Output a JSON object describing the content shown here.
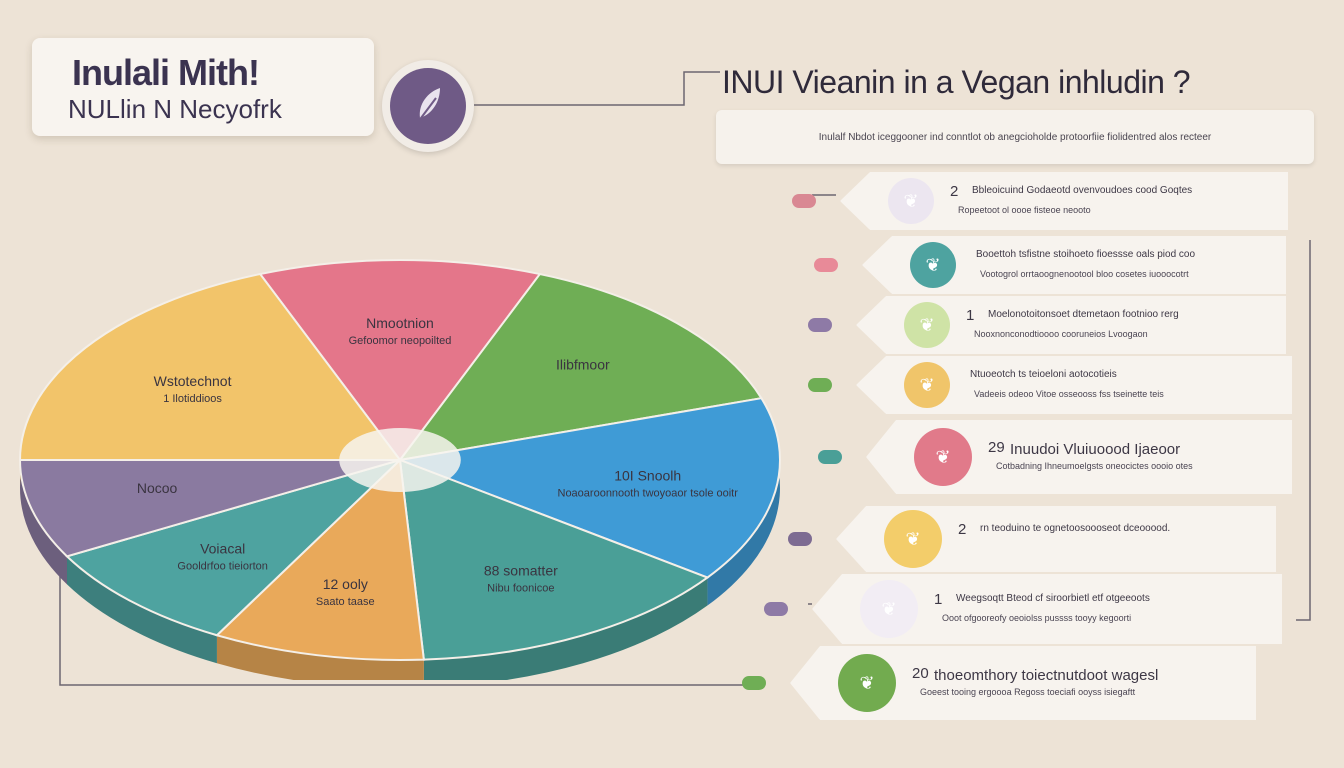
{
  "header": {
    "title": "Inulali Mith!",
    "subtitle": "NULlin N Necyofrk",
    "headline": "INUI Vieanin in a Vegan inhludin ?",
    "intro": "Inulalf Nbdot iceggooner ind conntlot ob anegcioholde protoorfiie fiolidentred alos recteer"
  },
  "colors": {
    "background": "#ede3d6",
    "pink": "#e88a98",
    "yellow": "#f0c56a",
    "purple": "#7d6b92",
    "green": "#6fae55",
    "teal": "#4a9f97",
    "blue": "#4fa8d8",
    "orange": "#e9a95a"
  },
  "chart_data": {
    "type": "pie",
    "slices": [
      {
        "label": "Nmootnion",
        "value": 12,
        "color": "#e4768a",
        "detail": "Gefoomor neopoilted"
      },
      {
        "label": "Ilibfmoor",
        "value": 14,
        "color": "#6fae55",
        "detail": ""
      },
      {
        "label": "10I Snoolh",
        "value": 15,
        "color": "#3f9bd6",
        "detail": "Noaoaroonnooth twoyoaor tsole ooitr"
      },
      {
        "label": "88 somatter",
        "value": 14,
        "color": "#4a9f97",
        "detail": "Nibu foonicoe"
      },
      {
        "label": "12 ooly",
        "value": 9,
        "color": "#e9a95a",
        "detail": "Saato taase"
      },
      {
        "label": "Voiacal",
        "value": 9,
        "color": "#4ea3a0",
        "detail": "Gooldrfoo tieiorton"
      },
      {
        "label": "Nocoo",
        "value": 8,
        "color": "#8a7aa0",
        "detail": ""
      },
      {
        "label": "Wstotechnot",
        "value": 19,
        "color": "#f2c46a",
        "detail": "1 Ilotiddioos"
      }
    ],
    "legend_items": [
      {
        "number": "2",
        "line1": "Bbleoicuind Godaeotd ovenvoudoes cood Goqtes",
        "line2": "Ropeetoot ol oooe fisteoe neooto"
      },
      {
        "number": "",
        "line1": "Booettoh tsfistne stoihoeto fioessse oals piod coo",
        "line2": "Vootogrol orrtaoognenootool bloo cosetes iuooocotrt"
      },
      {
        "number": "1",
        "line1": "Moelonotoitonsoet dtemetaon footnioo rerg",
        "line2": "Nooxnonconodtioooo cooruneios Lvoogaon"
      },
      {
        "number": "",
        "line1": "Ntuoeotch ts teioeloni aotocotieis",
        "line2": "Vadeeis odeoo Vitoe osseooss fss tseinette teis"
      },
      {
        "number": "29",
        "line1": "Inuudoi Vluiuoood Ijaeoor",
        "line2": "Cotbadning Ihneumoelgsts oneocictes oooio otes"
      },
      {
        "number": "2",
        "line1": "rn teoduino te ognetoosoooseot dceooood.",
        "line2": ""
      },
      {
        "number": "1",
        "line1": "Weegsoqtt Bteod cf siroorbietl etf otgeeoots",
        "line2": "Ooot ofgooreofy oeoiolss pussss tooyy kegoorti"
      },
      {
        "number": "20",
        "line1": "thoeomthory toiectnutdoot wagesl",
        "line2": "Goeest tooing ergoooa Regoss toeciafi ooyss isiegaftt"
      }
    ]
  },
  "cards": [
    {
      "icon": "leaf-icon",
      "color": "#ece6f0"
    },
    {
      "icon": "bowl-icon",
      "color": "#4ea3a0"
    },
    {
      "icon": "sprout-icon",
      "color": "#cfe3a6"
    },
    {
      "icon": "seed-icon",
      "color": "#f0c56a"
    },
    {
      "icon": "fruit-icon",
      "color": "#e17a8a"
    },
    {
      "icon": "bread-icon",
      "color": "#f3cd6a"
    },
    {
      "icon": "envelope-icon",
      "color": "#f2edf4"
    },
    {
      "icon": "clover-icon",
      "color": "#72ab4f"
    }
  ]
}
